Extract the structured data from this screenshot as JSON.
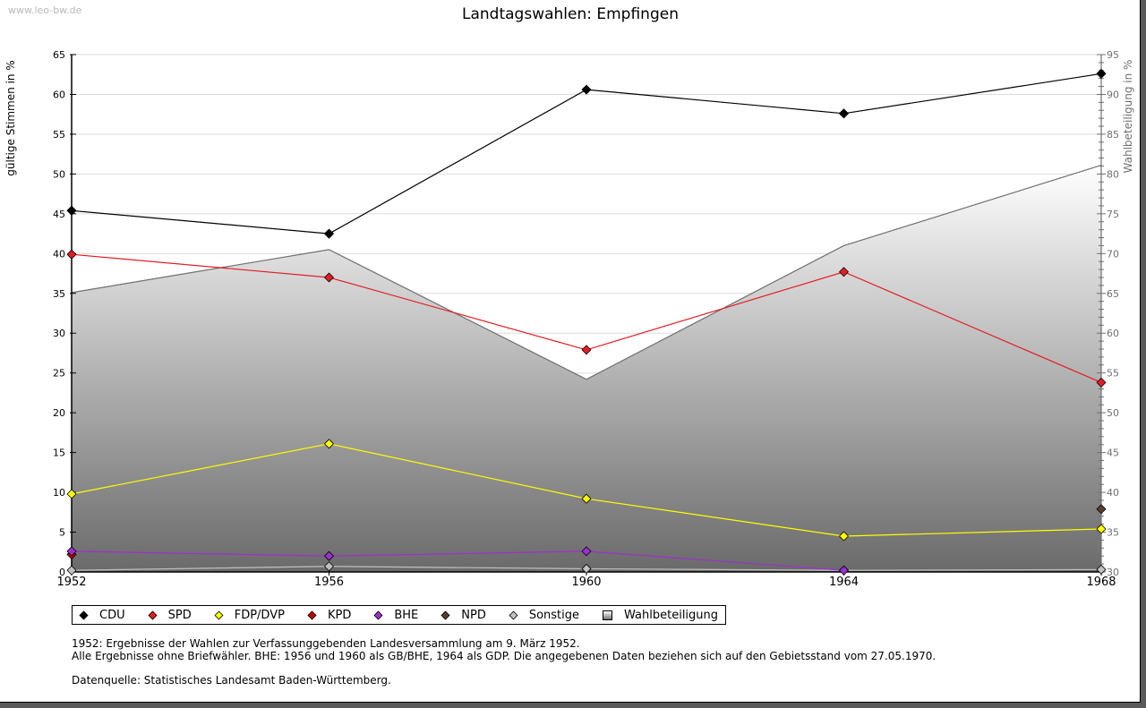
{
  "watermark": "www.leo-bw.de",
  "chart_data": {
    "type": "line",
    "title": "Landtagswahlen: Empfingen",
    "xlabel": "",
    "ylabel": "gültige Stimmen in %",
    "y2label": "Wahlbeteiligung in %",
    "x": [
      "1952",
      "1956",
      "1960",
      "1964",
      "1968"
    ],
    "ylim": [
      0,
      65
    ],
    "y2lim": [
      30,
      95
    ],
    "yticks": [
      "0",
      "5",
      "10",
      "15",
      "20",
      "25",
      "30",
      "35",
      "40",
      "45",
      "50",
      "55",
      "60",
      "65"
    ],
    "y2ticks": [
      "30",
      "35",
      "40",
      "45",
      "50",
      "55",
      "60",
      "65",
      "70",
      "75",
      "80",
      "85",
      "90",
      "95"
    ],
    "grid": true,
    "legend_position": "bottom",
    "series": [
      {
        "name": "CDU",
        "color": "#000000",
        "axis": "left",
        "values": [
          45.4,
          42.5,
          60.6,
          57.6,
          62.6
        ]
      },
      {
        "name": "SPD",
        "color": "#e31e24",
        "axis": "left",
        "values": [
          39.9,
          37.0,
          27.9,
          37.7,
          23.8
        ]
      },
      {
        "name": "FDP/DVP",
        "color": "#ffff00",
        "axis": "left",
        "values": [
          9.8,
          16.1,
          9.2,
          4.5,
          5.4
        ]
      },
      {
        "name": "KPD",
        "color": "#c00000",
        "axis": "left",
        "values": [
          2.2,
          null,
          null,
          null,
          null
        ]
      },
      {
        "name": "BHE",
        "color": "#9b30d0",
        "axis": "left",
        "values": [
          2.6,
          2.0,
          2.6,
          0.2,
          null
        ]
      },
      {
        "name": "NPD",
        "color": "#5c3d2e",
        "axis": "left",
        "values": [
          null,
          null,
          null,
          null,
          7.9
        ]
      },
      {
        "name": "Sonstige",
        "color": "#c0c0c0",
        "axis": "left",
        "values": [
          0.2,
          0.7,
          0.4,
          0.2,
          0.3
        ]
      },
      {
        "name": "Wahlbeteiligung",
        "color": "#909090",
        "axis": "right",
        "type": "area",
        "values": [
          65.1,
          70.5,
          54.2,
          71.0,
          81.1
        ]
      }
    ]
  },
  "notes": {
    "line1": "1952: Ergebnisse der Wahlen zur Verfassunggebenden Landesversammlung am 9. März 1952.",
    "line2": "Alle Ergebnisse ohne Briefwähler. BHE: 1956 und 1960 als GB/BHE, 1964 als GDP. Die angegebenen Daten beziehen sich auf den Gebietsstand vom 27.05.1970.",
    "source": "Datenquelle: Statistisches Landesamt Baden-Württemberg."
  }
}
